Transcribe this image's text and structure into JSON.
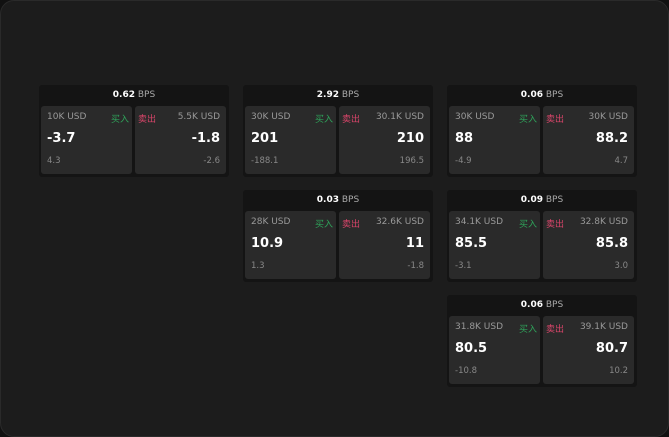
{
  "colors": {
    "buy": "#2fa35a",
    "sell": "#d9456a"
  },
  "buy_label": "买入",
  "sell_label": "卖出",
  "unit": "BPS",
  "cards": [
    {
      "bps": "0.62",
      "buy": {
        "amount": "10K USD",
        "price": "-3.7",
        "change": "4.3"
      },
      "sell": {
        "amount": "5.5K USD",
        "price": "-1.8",
        "change": "-2.6"
      }
    },
    {
      "bps": "2.92",
      "buy": {
        "amount": "30K USD",
        "price": "201",
        "change": "-188.1"
      },
      "sell": {
        "amount": "30.1K USD",
        "price": "210",
        "change": "196.5"
      }
    },
    {
      "bps": "0.06",
      "buy": {
        "amount": "30K USD",
        "price": "88",
        "change": "-4.9"
      },
      "sell": {
        "amount": "30K USD",
        "price": "88.2",
        "change": "4.7"
      }
    },
    {
      "bps": "0.03",
      "buy": {
        "amount": "28K USD",
        "price": "10.9",
        "change": "1.3"
      },
      "sell": {
        "amount": "32.6K USD",
        "price": "11",
        "change": "-1.8"
      }
    },
    {
      "bps": "0.09",
      "buy": {
        "amount": "34.1K USD",
        "price": "85.5",
        "change": "-3.1"
      },
      "sell": {
        "amount": "32.8K USD",
        "price": "85.8",
        "change": "3.0"
      }
    },
    {
      "bps": "0.06",
      "buy": {
        "amount": "31.8K USD",
        "price": "80.5",
        "change": "-10.8"
      },
      "sell": {
        "amount": "39.1K USD",
        "price": "80.7",
        "change": "10.2"
      }
    }
  ]
}
